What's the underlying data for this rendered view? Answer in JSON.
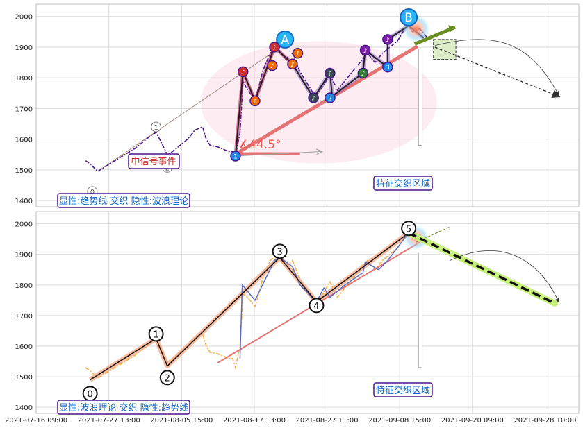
{
  "chart_data": [
    {
      "type": "line",
      "panel": "top",
      "ylim": [
        1380,
        2040
      ],
      "yticks": [
        1400,
        1500,
        1600,
        1700,
        1800,
        1900,
        2000
      ],
      "price_series": [
        [
          0.4,
          1530
        ],
        [
          1,
          1520
        ],
        [
          2,
          1495
        ],
        [
          3,
          1510
        ],
        [
          4,
          1525
        ],
        [
          5,
          1540
        ],
        [
          6,
          1555
        ],
        [
          7,
          1570
        ],
        [
          8,
          1590
        ],
        [
          9,
          1610
        ],
        [
          9.8,
          1622
        ],
        [
          10.5,
          1590
        ],
        [
          11,
          1565
        ],
        [
          11.3,
          1548
        ],
        [
          12,
          1560
        ],
        [
          13,
          1580
        ],
        [
          14,
          1600
        ],
        [
          15,
          1630
        ],
        [
          16,
          1640
        ],
        [
          16.5,
          1600
        ],
        [
          17,
          1580
        ],
        [
          18,
          1575
        ],
        [
          19,
          1565
        ],
        [
          19.5,
          1560
        ],
        [
          20,
          1560
        ],
        [
          20.4,
          1550
        ],
        [
          21,
          1620
        ],
        [
          21.4,
          1790
        ],
        [
          22,
          1760
        ],
        [
          23,
          1730
        ],
        [
          23.5,
          1770
        ],
        [
          24,
          1820
        ],
        [
          25,
          1880
        ],
        [
          26,
          1900
        ],
        [
          27,
          1860
        ],
        [
          28,
          1880
        ],
        [
          29,
          1820
        ],
        [
          30,
          1780
        ],
        [
          31,
          1740
        ],
        [
          32,
          1770
        ],
        [
          33,
          1810
        ],
        [
          34,
          1760
        ],
        [
          35,
          1790
        ],
        [
          36,
          1820
        ],
        [
          37,
          1850
        ],
        [
          38,
          1880
        ],
        [
          39,
          1850
        ],
        [
          40,
          1880
        ],
        [
          41,
          1900
        ],
        [
          42,
          1920
        ],
        [
          43,
          1960
        ],
        [
          43.5,
          1970
        ],
        [
          44,
          1950
        ],
        [
          45,
          1960
        ],
        [
          46,
          1930
        ]
      ],
      "trendline": {
        "from": [
          2.3,
          1500
        ],
        "to": [
          27.0,
          1910
        ],
        "label": ""
      },
      "angle_label": "∡44.5°",
      "signal_label": "中信号事件",
      "zone_label": "特征交织区域",
      "legend_text": "显性:趋势线 交织 隐性:波浪理论",
      "forecast": {
        "from": [
          47,
          1900
        ],
        "to": [
          63.5,
          1740
        ]
      },
      "wave_labels": [
        {
          "label": "0",
          "x": 1.3,
          "y": 1430
        },
        {
          "label": "1",
          "x": 9.8,
          "y": 1640
        },
        {
          "label": "2",
          "x": 11.3,
          "y": 1508
        },
        {
          "label": "A",
          "x": 27.0,
          "y": 1925
        },
        {
          "label": "B",
          "x": 43.5,
          "y": 1997
        }
      ],
      "markers": [
        {
          "label": "1",
          "x": 20.4,
          "y": 1545,
          "color": "#1e88e5"
        },
        {
          "label": "♪",
          "x": 21.4,
          "y": 1820,
          "color": "#d32f2f"
        },
        {
          "label": "♪",
          "x": 23.0,
          "y": 1725,
          "color": "#ef6c00"
        },
        {
          "label": "♪",
          "x": 25.3,
          "y": 1840,
          "color": "#ef6c00"
        },
        {
          "label": "♪",
          "x": 25.6,
          "y": 1900,
          "color": "#d32f2f"
        },
        {
          "label": "♪",
          "x": 28.0,
          "y": 1845,
          "color": "#ef6c00"
        },
        {
          "label": "♪",
          "x": 28.7,
          "y": 1880,
          "color": "#ef6c00"
        },
        {
          "label": "♪",
          "x": 30.8,
          "y": 1735,
          "color": "#37474f"
        },
        {
          "label": "2",
          "x": 33.0,
          "y": 1735,
          "color": "#1e88e5"
        },
        {
          "label": "♪",
          "x": 33.0,
          "y": 1815,
          "color": "#37474f"
        },
        {
          "label": "♪",
          "x": 37.4,
          "y": 1815,
          "color": "#2e7d32"
        },
        {
          "label": "♪",
          "x": 37.7,
          "y": 1890,
          "color": "#7b1fa2"
        },
        {
          "label": "3",
          "x": 40.7,
          "y": 1835,
          "color": "#1e88e5"
        },
        {
          "label": "♪",
          "x": 40.7,
          "y": 1925,
          "color": "#7b1fa2"
        }
      ]
    },
    {
      "type": "line",
      "panel": "bottom",
      "ylim": [
        1380,
        2040
      ],
      "yticks": [
        1400,
        1500,
        1600,
        1700,
        1800,
        1900,
        2000
      ],
      "xticks": [
        "2021-07-16 09:00",
        "2021-07-27 13:00",
        "2021-08-05 15:00",
        "2021-08-17 13:00",
        "2021-08-27 11:00",
        "2021-09-08 15:00",
        "2021-09-20 09:00",
        "2021-09-28 10:00"
      ],
      "zone_label": "特征交织区域",
      "legend_text": "显性:波浪理论 交织 隐性:趋势线",
      "wave_points": [
        {
          "label": "0",
          "x": 1.0,
          "y": 1490
        },
        {
          "label": "1",
          "x": 9.8,
          "y": 1625
        },
        {
          "label": "2",
          "x": 11.3,
          "y": 1535
        },
        {
          "label": "3",
          "x": 26.3,
          "y": 1890
        },
        {
          "label": "4",
          "x": 31.2,
          "y": 1745
        },
        {
          "label": "5",
          "x": 43.5,
          "y": 1970
        }
      ],
      "trendline": {
        "from": [
          18.0,
          1545
        ],
        "to": [
          45.0,
          1940
        ]
      },
      "forecast": {
        "from": [
          43.5,
          1970
        ],
        "to": [
          63.0,
          1740
        ]
      }
    }
  ],
  "colors": {
    "price_purple": "#4a148c",
    "trend_red": "#e57373",
    "trend_salmon": "#f4a582",
    "forecast_green": "#6b8e23",
    "forecast_lime": "#c6f07a",
    "accent_blue": "#29b6f6",
    "label_border": "#4a148c",
    "zone_text": "#1565c0"
  }
}
